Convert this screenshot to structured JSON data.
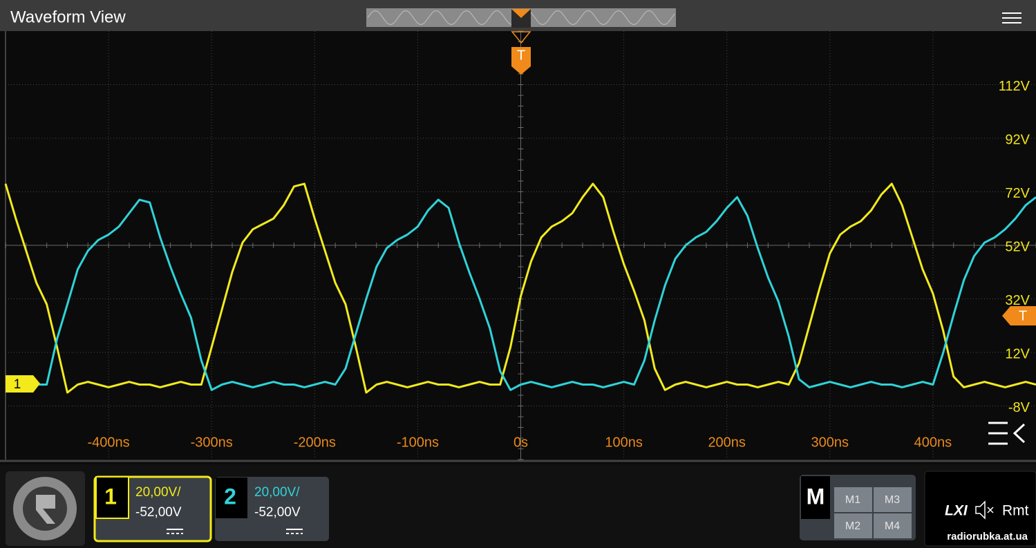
{
  "header": {
    "title": "Waveform View"
  },
  "trigger": {
    "label": "T"
  },
  "chart_data": {
    "type": "line",
    "grid": true,
    "xlim": [
      -500,
      500
    ],
    "ylim": [
      -28,
      132
    ],
    "xticks": [
      {
        "value": -400,
        "label": "-400ns"
      },
      {
        "value": -300,
        "label": "-300ns"
      },
      {
        "value": -200,
        "label": "-200ns"
      },
      {
        "value": -100,
        "label": "-100ns"
      },
      {
        "value": 0,
        "label": "0s"
      },
      {
        "value": 100,
        "label": "100ns"
      },
      {
        "value": 200,
        "label": "200ns"
      },
      {
        "value": 300,
        "label": "300ns"
      },
      {
        "value": 400,
        "label": "400ns"
      }
    ],
    "yticks": [
      {
        "value": 112,
        "label": "112V"
      },
      {
        "value": 92,
        "label": "92V"
      },
      {
        "value": 72,
        "label": "72V"
      },
      {
        "value": 52,
        "label": "52V"
      },
      {
        "value": 32,
        "label": "32V"
      },
      {
        "value": 12,
        "label": "12V"
      },
      {
        "value": -8,
        "label": "-8V"
      }
    ],
    "x": [
      -500,
      -490,
      -480,
      -470,
      -460,
      -450,
      -440,
      -430,
      -420,
      -410,
      -400,
      -390,
      -380,
      -370,
      -360,
      -350,
      -340,
      -330,
      -320,
      -310,
      -300,
      -290,
      -280,
      -270,
      -260,
      -250,
      -240,
      -230,
      -220,
      -210,
      -200,
      -190,
      -180,
      -170,
      -160,
      -150,
      -140,
      -130,
      -120,
      -110,
      -100,
      -90,
      -80,
      -70,
      -60,
      -50,
      -40,
      -30,
      -20,
      -10,
      0,
      10,
      20,
      30,
      40,
      50,
      60,
      70,
      80,
      90,
      100,
      110,
      120,
      130,
      140,
      150,
      160,
      170,
      180,
      190,
      200,
      210,
      220,
      230,
      240,
      250,
      260,
      270,
      280,
      290,
      300,
      310,
      320,
      330,
      340,
      350,
      360,
      370,
      380,
      390,
      400,
      410,
      420,
      430,
      440,
      450,
      460,
      470,
      480,
      490,
      500
    ],
    "series": [
      {
        "name": "1",
        "color": "#f2ea1d",
        "values": [
          75,
          62,
          50,
          38,
          30,
          14,
          -3,
          0,
          1,
          0,
          -1,
          0,
          1,
          0,
          0,
          -1,
          0,
          1,
          0,
          0,
          14,
          28,
          42,
          53,
          58,
          60,
          62,
          67,
          74,
          75,
          62,
          50,
          38,
          30,
          14,
          -3,
          0,
          1,
          0,
          -1,
          0,
          1,
          0,
          0,
          -1,
          0,
          1,
          0,
          0,
          14,
          33,
          46,
          55,
          59,
          61,
          64,
          70,
          75,
          70,
          57,
          45,
          35,
          24,
          6,
          -2,
          0,
          1,
          0,
          -1,
          0,
          1,
          0,
          0,
          -1,
          0,
          1,
          0,
          8,
          22,
          36,
          49,
          56,
          59,
          61,
          65,
          71,
          75,
          67,
          55,
          43,
          34,
          20,
          3,
          -1,
          0,
          1,
          0,
          -1,
          0,
          1,
          0
        ]
      },
      {
        "name": "2",
        "color": "#2fd3d8",
        "values": [
          0,
          0,
          1,
          0,
          0,
          17,
          30,
          43,
          50,
          54,
          56,
          59,
          64,
          69,
          68,
          55,
          44,
          34,
          25,
          9,
          -2,
          0,
          1,
          0,
          -1,
          0,
          1,
          0,
          0,
          -1,
          0,
          1,
          0,
          6,
          19,
          32,
          44,
          51,
          54,
          56,
          59,
          65,
          69,
          66,
          53,
          42,
          32,
          21,
          5,
          -2,
          0,
          1,
          0,
          -1,
          0,
          1,
          0,
          0,
          -1,
          0,
          1,
          0,
          9,
          24,
          37,
          47,
          52,
          55,
          57,
          61,
          66,
          70,
          63,
          51,
          40,
          31,
          18,
          2,
          -1,
          0,
          1,
          0,
          -1,
          0,
          1,
          0,
          0,
          -1,
          0,
          1,
          0,
          12,
          26,
          39,
          48,
          53,
          55,
          58,
          62,
          67,
          70
        ]
      }
    ]
  },
  "channels": [
    {
      "scale": "20,00V/",
      "offset": "-52,00V"
    },
    {
      "scale": "20,00V/",
      "offset": "-52,00V"
    }
  ],
  "math": {
    "label": "M",
    "buttons": [
      "M1",
      "M3",
      "M2",
      "M4"
    ]
  },
  "status": {
    "lxi": "LXI",
    "remote": "Rmt"
  },
  "watermark": "radiorubka.at.ua"
}
